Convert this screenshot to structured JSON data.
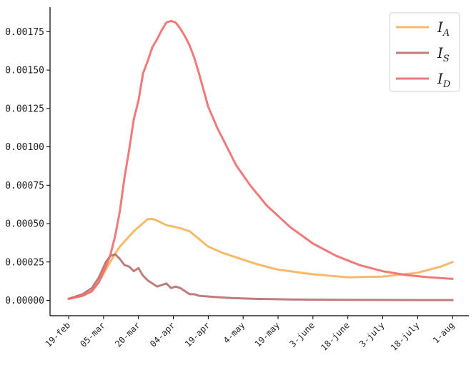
{
  "chart_data": {
    "type": "line",
    "xlabel": "",
    "ylabel": "",
    "title": "",
    "x_ticks": [
      "19-feb",
      "05-mar",
      "20-mar",
      "04-apr",
      "19-apr",
      "4-may",
      "19-may",
      "3-june",
      "18-june",
      "3-july",
      "18-july",
      "1-aug"
    ],
    "y_ticks": [
      "0.00000",
      "0.00025",
      "0.00050",
      "0.00075",
      "0.00100",
      "0.00125",
      "0.00150",
      "0.00175"
    ],
    "ylim": [
      -0.0001,
      0.00191
    ],
    "xlim": [
      -8,
      172
    ],
    "grid": false,
    "legend_position": "top-right",
    "series": [
      {
        "name": "I_A",
        "legend_main": "I",
        "legend_sub": "A",
        "color": "#f7b25a",
        "x": [
          0,
          6,
          10,
          13,
          16,
          19,
          22,
          25,
          28,
          31,
          34,
          36,
          38,
          42,
          48,
          52,
          56,
          60,
          66,
          72,
          80,
          90,
          105,
          120,
          135,
          150,
          160,
          165
        ],
        "y": [
          1e-05,
          3e-05,
          6e-05,
          0.00012,
          0.0002,
          0.00028,
          0.00035,
          0.0004,
          0.00045,
          0.00049,
          0.00053,
          0.00053,
          0.00052,
          0.00049,
          0.00047,
          0.00045,
          0.0004,
          0.00035,
          0.00031,
          0.00028,
          0.00024,
          0.0002,
          0.00017,
          0.00015,
          0.000155,
          0.00018,
          0.00022,
          0.00025
        ]
      },
      {
        "name": "I_S",
        "legend_main": "I",
        "legend_sub": "S",
        "color": "#b86e6e",
        "x": [
          0,
          6,
          10,
          13,
          16,
          18,
          20,
          22,
          24,
          26,
          28,
          30,
          32,
          34,
          36,
          38,
          40,
          42,
          44,
          46,
          48,
          50,
          52,
          54,
          56,
          60,
          65,
          70,
          80,
          95,
          110,
          130,
          150,
          165
        ],
        "y": [
          1e-05,
          4e-05,
          8e-05,
          0.00015,
          0.00025,
          0.00029,
          0.0003,
          0.00027,
          0.00023,
          0.00022,
          0.00019,
          0.00021,
          0.00016,
          0.00013,
          0.00011,
          9e-05,
          0.0001,
          0.00011,
          8e-05,
          9e-05,
          8e-05,
          6e-05,
          4e-05,
          4e-05,
          3e-05,
          2.5e-05,
          2e-05,
          1.5e-05,
          1e-05,
          6e-06,
          4e-06,
          3e-06,
          2e-06,
          2e-06
        ]
      },
      {
        "name": "I_D",
        "legend_main": "I",
        "legend_sub": "D",
        "color": "#f06a6a",
        "x": [
          0,
          6,
          10,
          13,
          16,
          18,
          20,
          22,
          24,
          26,
          28,
          30,
          32,
          34,
          36,
          38,
          40,
          42,
          44,
          46,
          48,
          50,
          52,
          54,
          56,
          58,
          60,
          64,
          68,
          72,
          78,
          85,
          95,
          105,
          115,
          125,
          135,
          145,
          155,
          165
        ],
        "y": [
          1e-05,
          3e-05,
          6e-05,
          0.00012,
          0.00022,
          0.0003,
          0.00042,
          0.00058,
          0.0008,
          0.00098,
          0.00118,
          0.0013,
          0.00148,
          0.00156,
          0.00165,
          0.0017,
          0.00176,
          0.00181,
          0.00182,
          0.00181,
          0.00177,
          0.00172,
          0.00166,
          0.00158,
          0.00148,
          0.00137,
          0.00126,
          0.00112,
          0.001,
          0.00088,
          0.00075,
          0.00062,
          0.00048,
          0.00037,
          0.00029,
          0.00023,
          0.00019,
          0.000165,
          0.00015,
          0.00014
        ]
      }
    ]
  }
}
